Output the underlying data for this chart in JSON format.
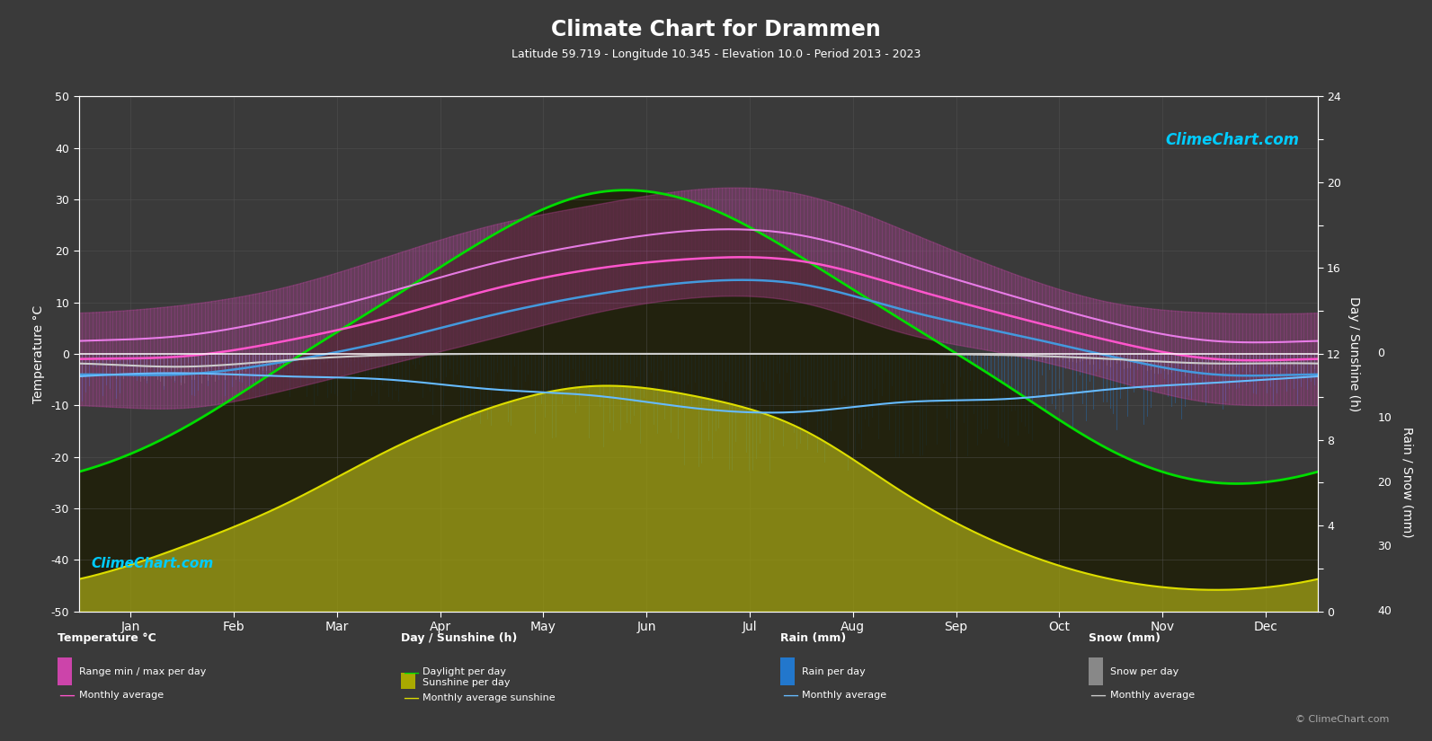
{
  "title": "Climate Chart for Drammen",
  "subtitle": "Latitude 59.719 - Longitude 10.345 - Elevation 10.0 - Period 2013 - 2023",
  "bg_color": "#3a3a3a",
  "grid_color": "#555555",
  "text_color": "#ffffff",
  "months": [
    "Jan",
    "Feb",
    "Mar",
    "Apr",
    "May",
    "Jun",
    "Jul",
    "Aug",
    "Sep",
    "Oct",
    "Nov",
    "Dec"
  ],
  "daylight": [
    6.5,
    8.5,
    11.5,
    14.5,
    17.5,
    19.5,
    19.0,
    16.5,
    13.5,
    10.5,
    7.5,
    6.0
  ],
  "sunshine_avg": [
    1.5,
    3.0,
    5.0,
    7.5,
    9.5,
    10.5,
    10.0,
    8.5,
    5.5,
    3.0,
    1.5,
    1.0
  ],
  "temp_max_avg": [
    2.5,
    3.5,
    7.0,
    12.0,
    17.5,
    21.5,
    24.0,
    23.0,
    17.5,
    11.5,
    6.0,
    2.5
  ],
  "temp_min_avg": [
    -4.0,
    -4.0,
    -1.5,
    2.5,
    7.5,
    11.5,
    14.0,
    13.5,
    8.5,
    4.0,
    -0.5,
    -4.0
  ],
  "temp_avg": [
    -1.0,
    -0.5,
    2.5,
    7.0,
    12.5,
    16.5,
    18.5,
    18.0,
    13.0,
    7.5,
    2.5,
    -1.0
  ],
  "rain_avg_mm": [
    3.5,
    3.0,
    3.5,
    4.0,
    5.5,
    6.5,
    8.5,
    9.0,
    7.5,
    7.0,
    5.5,
    4.5
  ],
  "snow_avg_mm": [
    1.5,
    2.0,
    1.0,
    0.2,
    0.0,
    0.0,
    0.0,
    0.0,
    0.0,
    0.2,
    0.8,
    1.5
  ],
  "temp_range_daily_max": [
    8.0,
    9.5,
    13.0,
    19.0,
    25.0,
    29.0,
    32.0,
    31.0,
    24.0,
    16.0,
    10.0,
    8.0
  ],
  "temp_range_daily_min": [
    -10.0,
    -10.5,
    -7.0,
    -2.0,
    3.0,
    8.0,
    11.0,
    10.0,
    4.0,
    0.0,
    -5.0,
    -9.5
  ],
  "daylight_color": "#00dd00",
  "sunshine_fill_color": "#aaaa00",
  "sunshine_line_color": "#dddd00",
  "temp_range_color": "#cc44aa",
  "temp_avg_line_color": "#ff55cc",
  "temp_max_line_color": "#ff88ff",
  "temp_min_line_color": "#4499dd",
  "rain_bar_color": "#2288ee",
  "snow_bar_color": "#aaaaaa",
  "rain_avg_line_color": "#66bbff",
  "snow_avg_line_color": "#cccccc",
  "white_zero_line_color": "#ffffff"
}
